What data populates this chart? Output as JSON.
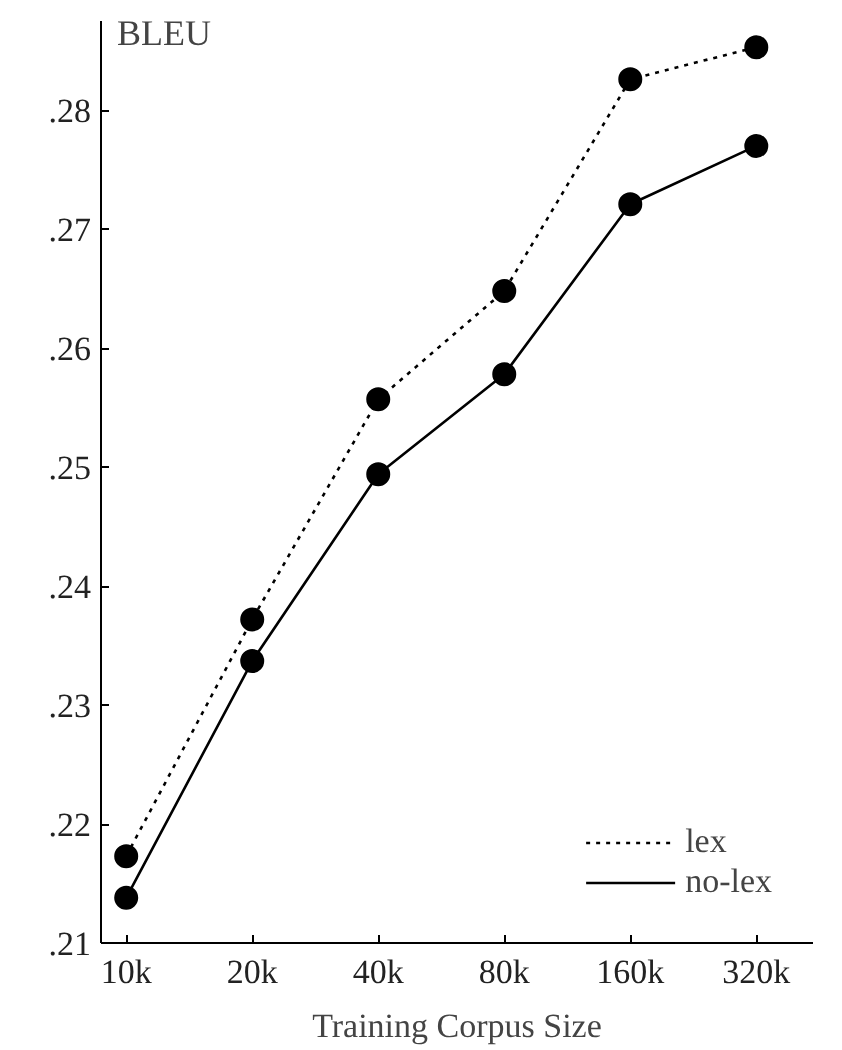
{
  "chart_data": {
    "type": "line",
    "xlabel": "Training Corpus Size",
    "ylabel": "BLEU",
    "categories": [
      "10k",
      "20k",
      "40k",
      "80k",
      "160k",
      "320k"
    ],
    "series": [
      {
        "name": "lex",
        "color": "#000000",
        "line_style": "dotted",
        "values": [
          0.2173,
          0.2372,
          0.2557,
          0.2648,
          0.2826,
          0.2853
        ]
      },
      {
        "name": "no-lex",
        "color": "#000000",
        "line_style": "solid",
        "values": [
          0.2138,
          0.2337,
          0.2494,
          0.2578,
          0.2721,
          0.277
        ]
      }
    ],
    "ylim": [
      0.21,
      0.2875
    ],
    "yticks": [
      {
        "value": 0.21,
        "label": ".21"
      },
      {
        "value": 0.22,
        "label": ".22"
      },
      {
        "value": 0.23,
        "label": ".23"
      },
      {
        "value": 0.24,
        "label": ".24"
      },
      {
        "value": 0.25,
        "label": ".25"
      },
      {
        "value": 0.26,
        "label": ".26"
      },
      {
        "value": 0.27,
        "label": ".27"
      },
      {
        "value": 0.28,
        "label": ".28"
      }
    ],
    "marker": "circle",
    "grid": false,
    "legend": "bottom right"
  }
}
